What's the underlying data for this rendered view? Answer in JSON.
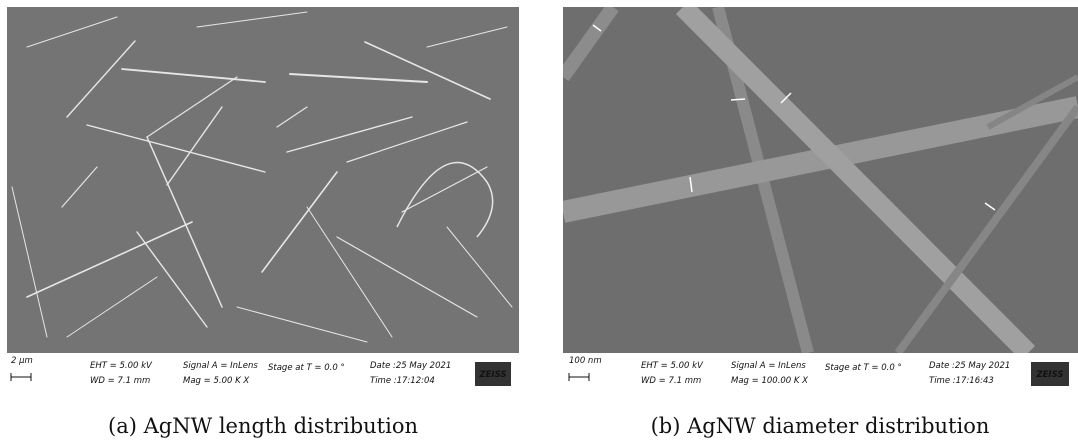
{
  "panels": [
    {
      "scale": "2 µm",
      "eht": "EHT = 5.00 kV",
      "wd": "WD = 7.1 mm",
      "signal": "Signal A = InLens",
      "mag": "Mag = 5.00 K X",
      "stage": "Stage at T = 0.0 °",
      "date": "Date :25 May 2021",
      "time": "Time :17:12:04",
      "logo": "ZEISS",
      "caption": "(a) AgNW length distribution"
    },
    {
      "scale": "100 nm",
      "eht": "EHT = 5.00 kV",
      "wd": "WD = 7.1 mm",
      "signal": "Signal A = InLens",
      "mag": "Mag = 100.00 K X",
      "stage": "Stage at T = 0.0 °",
      "date": "Date :25 May 2021",
      "time": "Time :17:16:43",
      "logo": "ZEISS",
      "caption": "(b) AgNW diameter distribution"
    }
  ]
}
